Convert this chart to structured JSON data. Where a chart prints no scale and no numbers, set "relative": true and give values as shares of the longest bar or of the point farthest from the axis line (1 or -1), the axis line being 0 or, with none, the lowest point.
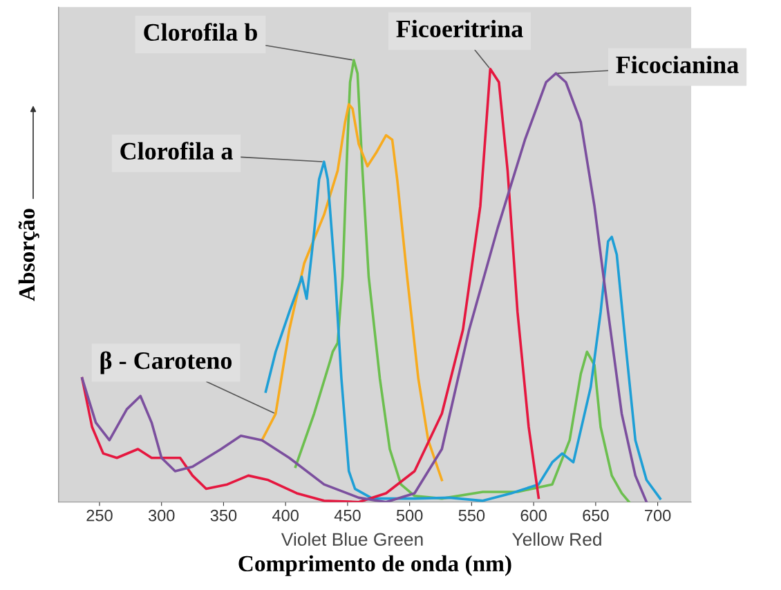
{
  "chart_data": {
    "type": "line",
    "relative": true,
    "xlabel": "Comprimento de onda (nm)",
    "ylabel": "Absorção",
    "xlim": [
      217,
      727
    ],
    "xticks": [
      250,
      300,
      350,
      400,
      450,
      500,
      550,
      600,
      650,
      700
    ],
    "grid": false,
    "marker": "none",
    "line_style": "solid",
    "series": [
      {
        "color": "#6cbf4f",
        "x": [
          408,
          423,
          436,
          438,
          442,
          446,
          450,
          452,
          455,
          458,
          462,
          467,
          476,
          484,
          493,
          504,
          526,
          559,
          587,
          615,
          629,
          638,
          643,
          649,
          654,
          663,
          671,
          677
        ],
        "values": [
          0.08,
          0.2,
          0.32,
          0.34,
          0.36,
          0.51,
          0.82,
          0.95,
          1.0,
          0.97,
          0.75,
          0.51,
          0.28,
          0.12,
          0.04,
          0.014,
          0.008,
          0.023,
          0.023,
          0.04,
          0.14,
          0.29,
          0.34,
          0.31,
          0.17,
          0.06,
          0.02,
          0
        ]
      },
      {
        "color": "#f7ab1f",
        "x": [
          381,
          392,
          403,
          415,
          431,
          442,
          448,
          451,
          454,
          459,
          466,
          473,
          481,
          486,
          490,
          498,
          507,
          515,
          526
        ],
        "values": [
          0.14,
          0.2,
          0.39,
          0.54,
          0.65,
          0.75,
          0.86,
          0.9,
          0.89,
          0.81,
          0.76,
          0.79,
          0.83,
          0.82,
          0.73,
          0.51,
          0.28,
          0.14,
          0.05
        ]
      },
      {
        "color": "#1e9fd6",
        "x": [
          384,
          392,
          403,
          412,
          413,
          417,
          423,
          427,
          431,
          434,
          440,
          445,
          451,
          456,
          470,
          504,
          532,
          559,
          582,
          604,
          615,
          623,
          632,
          646,
          654,
          660,
          663,
          667,
          674,
          682,
          691,
          702
        ],
        "values": [
          0.25,
          0.34,
          0.43,
          0.5,
          0.51,
          0.46,
          0.61,
          0.73,
          0.77,
          0.73,
          0.51,
          0.28,
          0.07,
          0.03,
          0.008,
          0.008,
          0.01,
          0.003,
          0.02,
          0.04,
          0.09,
          0.11,
          0.09,
          0.26,
          0.43,
          0.59,
          0.6,
          0.56,
          0.36,
          0.14,
          0.05,
          0.008
        ]
      },
      {
        "color": "#e5173f",
        "x": [
          236,
          244,
          253,
          264,
          281,
          292,
          303,
          315,
          325,
          336,
          353,
          370,
          386,
          409,
          431,
          459,
          481,
          504,
          526,
          543,
          557,
          565,
          572,
          579,
          587,
          596,
          604
        ],
        "values": [
          0.28,
          0.17,
          0.11,
          0.1,
          0.12,
          0.1,
          0.1,
          0.1,
          0.06,
          0.03,
          0.04,
          0.06,
          0.05,
          0.02,
          0.003,
          0,
          0.02,
          0.07,
          0.2,
          0.39,
          0.67,
          0.98,
          0.95,
          0.75,
          0.43,
          0.17,
          0.01
        ]
      },
      {
        "color": "#7b4f9e",
        "x": [
          236,
          247,
          258,
          272,
          283,
          292,
          300,
          311,
          325,
          348,
          364,
          381,
          403,
          431,
          459,
          481,
          504,
          526,
          548,
          571,
          593,
          610,
          618,
          626,
          638,
          649,
          660,
          671,
          682,
          691
        ],
        "values": [
          0.28,
          0.18,
          0.14,
          0.21,
          0.24,
          0.18,
          0.1,
          0.07,
          0.08,
          0.12,
          0.15,
          0.14,
          0.1,
          0.04,
          0.01,
          0,
          0.02,
          0.12,
          0.39,
          0.62,
          0.82,
          0.95,
          0.97,
          0.95,
          0.86,
          0.67,
          0.43,
          0.2,
          0.06,
          0
        ]
      }
    ],
    "annotations": [
      {
        "text": "Clorofila b",
        "x": 455,
        "y": 1.0
      },
      {
        "text": "Ficoeritrina",
        "x": 565,
        "y": 0.98
      },
      {
        "text": "Ficocianina",
        "x": 618,
        "y": 0.97
      },
      {
        "text": "Clorofila a",
        "x": 431,
        "y": 0.77
      },
      {
        "text": "β - Caroteno",
        "x": 392,
        "y": 0.2
      },
      "Violet Blue Green",
      "Yellow Red"
    ]
  }
}
